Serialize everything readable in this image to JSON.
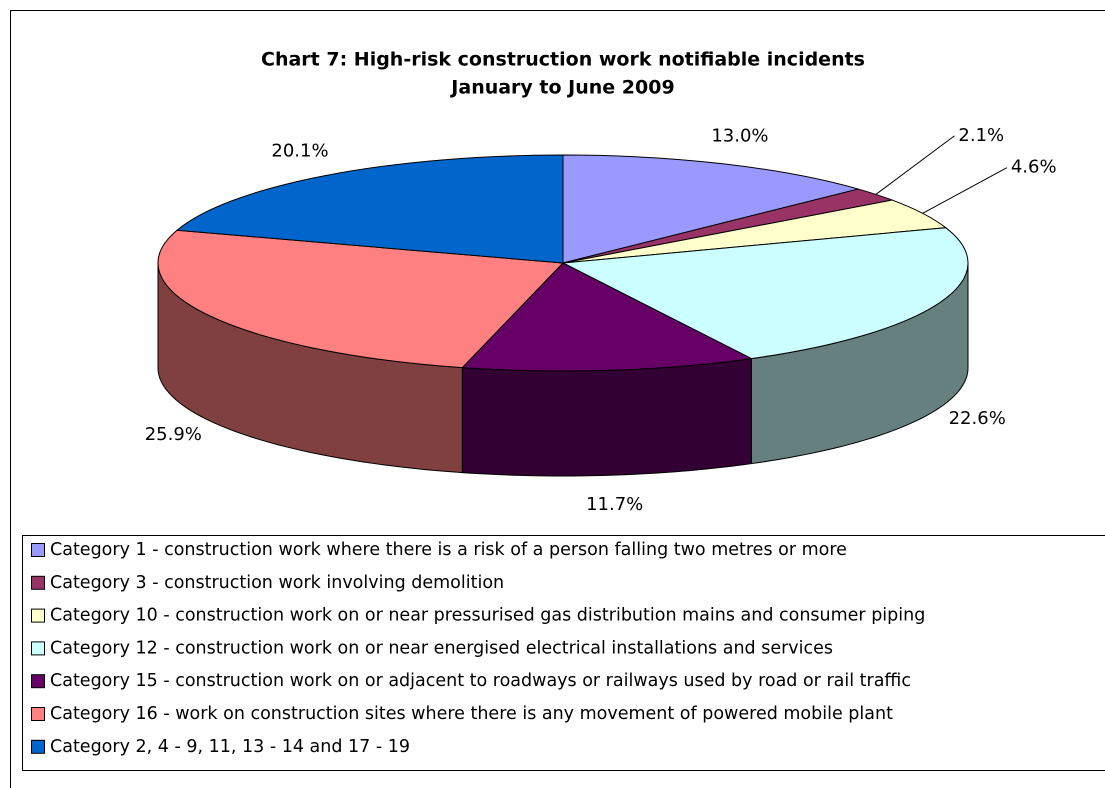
{
  "chart_data": {
    "type": "pie3d",
    "title": "Chart 7: High-risk construction work notifiable incidents",
    "subtitle": "January to June 2009",
    "categories": [
      "Category 1 - construction work where there is a risk of a person falling two metres or more",
      "Category 3 - construction work involving demolition",
      "Category 10 - construction work on or near pressurised gas distribution mains and consumer piping",
      "Category 12 - construction work on or near energised electrical installations and services",
      "Category 15 - construction work on or adjacent to roadways or railways used by road or rail traffic",
      "Category 16 - work on construction sites where there is any movement of powered mobile plant",
      "Category 2, 4 - 9, 11, 13 - 14 and 17 - 19"
    ],
    "values": [
      13.0,
      2.1,
      4.6,
      22.6,
      11.7,
      25.9,
      20.1
    ],
    "value_labels": [
      "13.0%",
      "2.1%",
      "4.6%",
      "22.6%",
      "11.7%",
      "25.9%",
      "20.1%"
    ],
    "colors": [
      "#9999ff",
      "#993366",
      "#ffffcc",
      "#ccffff",
      "#660066",
      "#ff8080",
      "#0066cc"
    ],
    "legend": "bottom"
  }
}
